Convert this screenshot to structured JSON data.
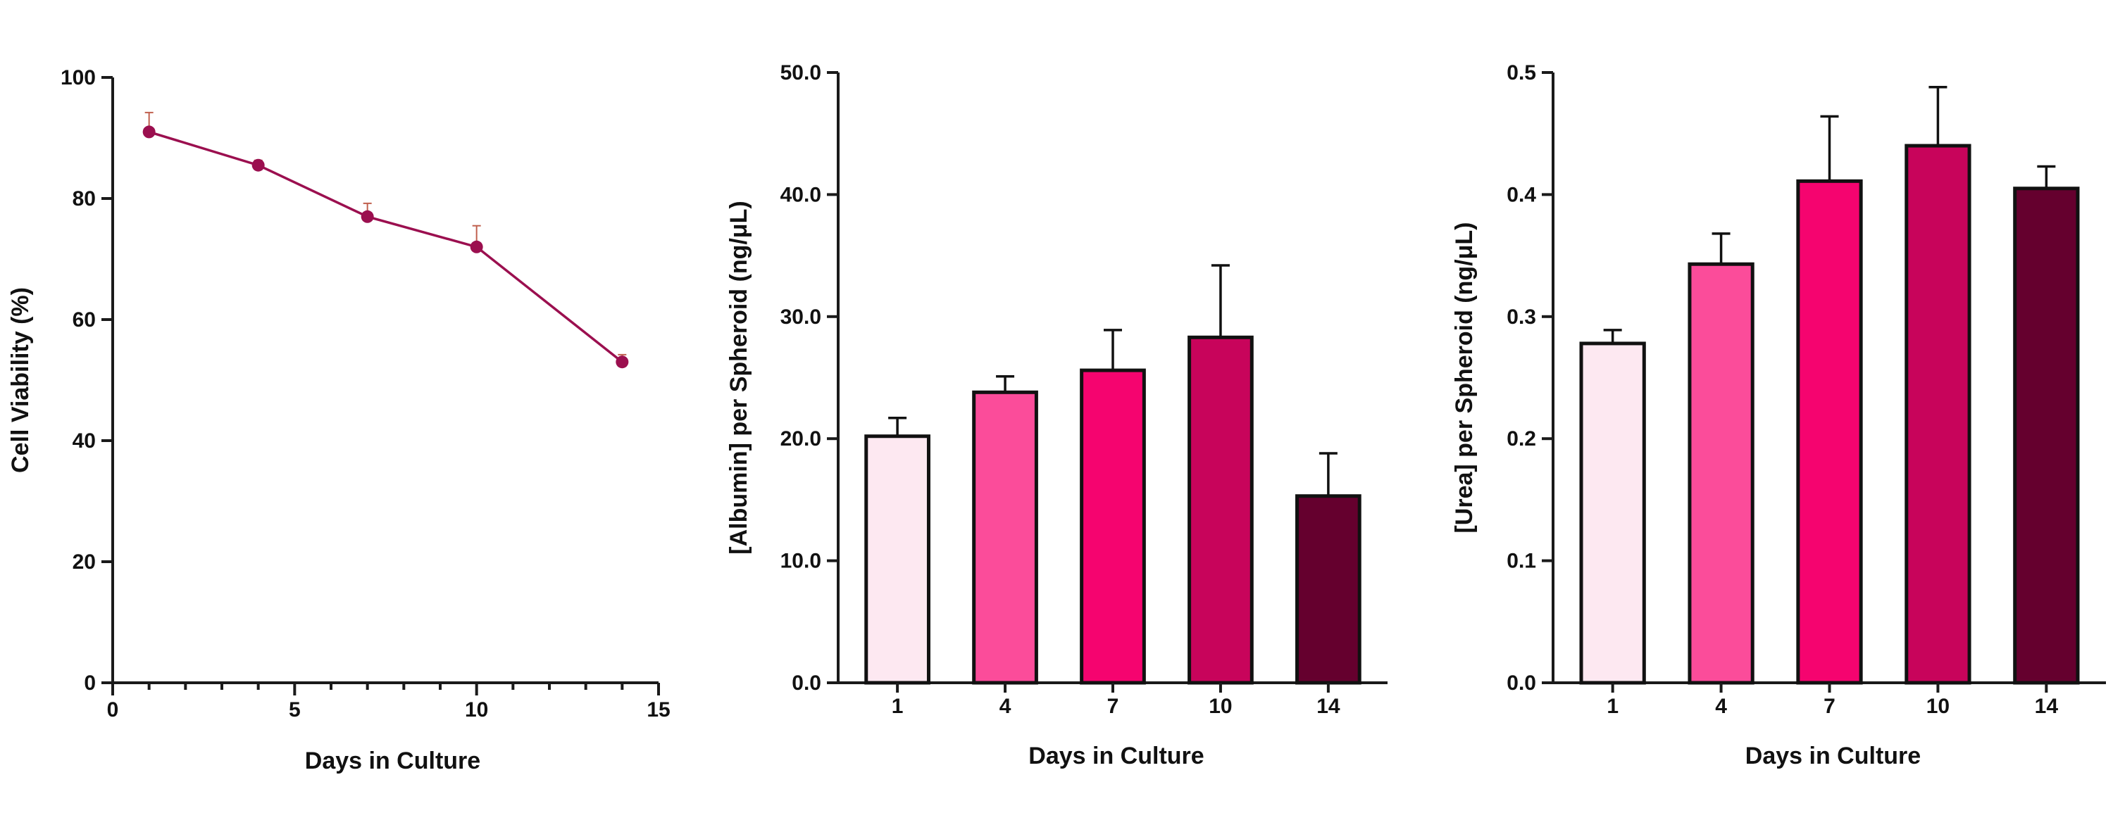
{
  "chart_data": [
    {
      "type": "line",
      "xlabel": "Days in Culture",
      "ylabel": "Cell Viability (%)",
      "xlim": [
        0,
        15
      ],
      "ylim": [
        0,
        100
      ],
      "xticks": [
        0,
        5,
        10,
        15
      ],
      "xtick_labels": [
        "0",
        "5",
        "10",
        "15"
      ],
      "yticks": [
        0,
        20,
        40,
        60,
        80,
        100
      ],
      "ytick_labels": [
        "0",
        "20",
        "40",
        "60",
        "80",
        "100"
      ],
      "color": "#9b0f4f",
      "series": [
        {
          "x": [
            1,
            4,
            7,
            10,
            14
          ],
          "y": [
            91,
            85.5,
            77,
            72,
            53
          ],
          "error": [
            3.2,
            0.8,
            2.2,
            3.5,
            1.2
          ]
        }
      ]
    },
    {
      "type": "bar",
      "xlabel": "Days in Culture",
      "ylabel": "[Albumin] per Spheroid (ng/μL)",
      "ylim": [
        0,
        50
      ],
      "yticks": [
        0,
        10,
        20,
        30,
        40,
        50
      ],
      "ytick_labels": [
        "0.0",
        "10.0",
        "20.0",
        "30.0",
        "40.0",
        "50.0"
      ],
      "categories": [
        "1",
        "4",
        "7",
        "10",
        "14"
      ],
      "values": [
        20.2,
        23.8,
        25.6,
        28.3,
        15.3
      ],
      "error": [
        1.5,
        1.3,
        3.3,
        5.9,
        3.5
      ],
      "colors": [
        "#fde8f1",
        "#fb4c9a",
        "#f5046f",
        "#c8045b",
        "#65002e"
      ]
    },
    {
      "type": "bar",
      "xlabel": "Days in Culture",
      "ylabel": "[Urea] per Spheroid (ng/μL)",
      "ylim": [
        0,
        0.5
      ],
      "yticks": [
        0,
        0.1,
        0.2,
        0.3,
        0.4,
        0.5
      ],
      "ytick_labels": [
        "0.0",
        "0.1",
        "0.2",
        "0.3",
        "0.4",
        "0.5"
      ],
      "categories": [
        "1",
        "4",
        "7",
        "10",
        "14"
      ],
      "values": [
        0.278,
        0.343,
        0.411,
        0.44,
        0.405
      ],
      "error": [
        0.011,
        0.025,
        0.053,
        0.048,
        0.018
      ],
      "colors": [
        "#fde8f1",
        "#fb4c9a",
        "#f5046f",
        "#c8045b",
        "#65002e"
      ]
    }
  ]
}
